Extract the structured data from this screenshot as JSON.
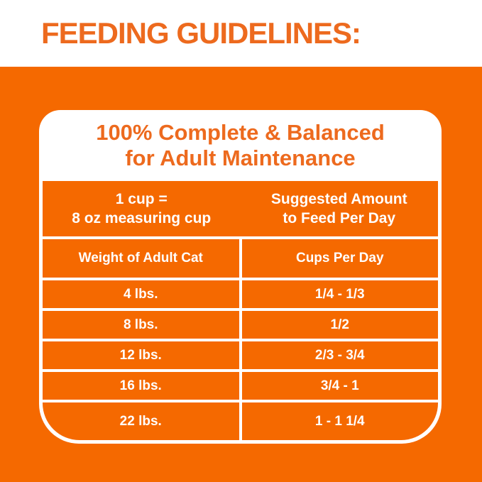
{
  "header": {
    "title": "FEEDING GUIDELINES:"
  },
  "colors": {
    "panel_orange": "#F56900",
    "text_orange": "#ED6A1E",
    "gridline_white": "#FFFFFF"
  },
  "card": {
    "heading_line1": "100% Complete & Balanced",
    "heading_line2": "for Adult Maintenance",
    "cup_note_line1": "1 cup =",
    "cup_note_line2": "8 oz measuring cup",
    "amount_note_line1": "Suggested Amount",
    "amount_note_line2": "to Feed Per Day",
    "columns": {
      "weight": "Weight of Adult Cat",
      "cups": "Cups Per Day"
    },
    "rows": [
      {
        "weight": "4 lbs.",
        "cups": "1/4 - 1/3"
      },
      {
        "weight": "8 lbs.",
        "cups": "1/2"
      },
      {
        "weight": "12 lbs.",
        "cups": "2/3 - 3/4"
      },
      {
        "weight": "16 lbs.",
        "cups": "3/4 - 1"
      },
      {
        "weight": "22 lbs.",
        "cups": "1 - 1 1/4"
      }
    ]
  }
}
